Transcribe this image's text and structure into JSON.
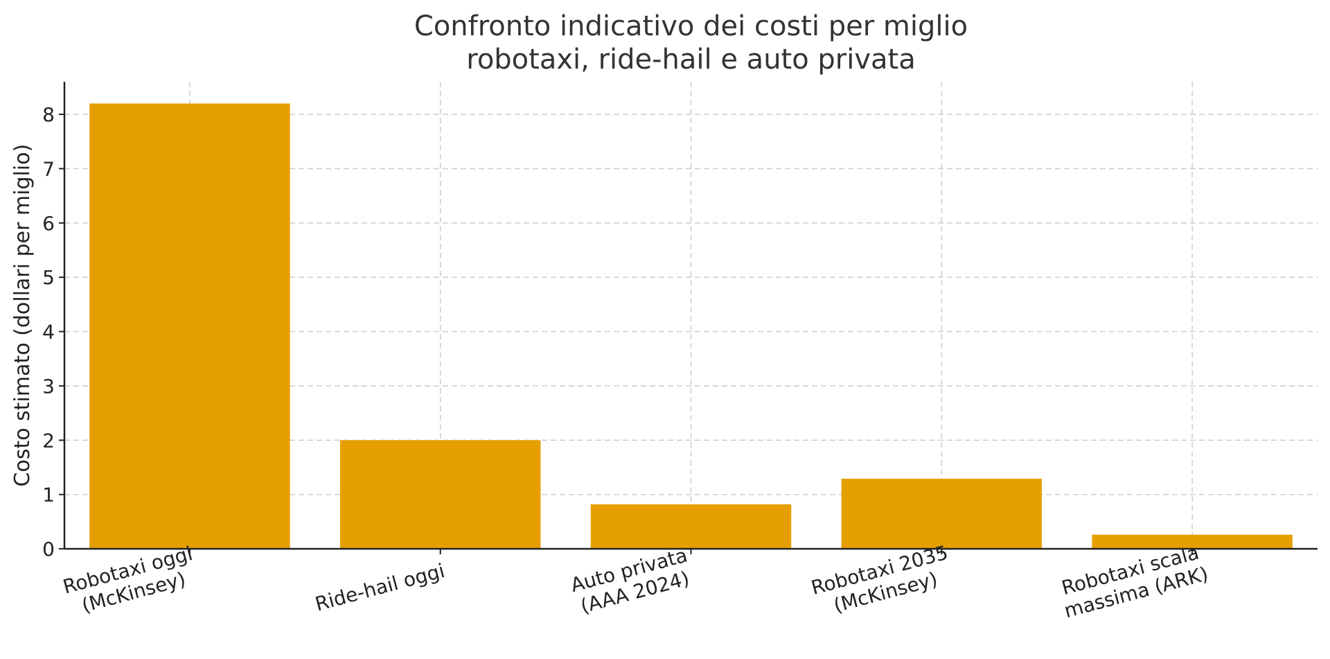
{
  "chart_data": {
    "type": "bar",
    "title": "Confronto indicativo dei costi per miglio\nrobotaxi, ride-hail e auto privata",
    "xlabel": "",
    "ylabel": "Costo stimato (dollari per miglio)",
    "categories": [
      "Robotaxi oggi\n(McKinsey)",
      "Ride-hail oggi",
      "Auto privata\n(AAA 2024)",
      "Robotaxi 2035\n(McKinsey)",
      "Robotaxi scala\nmassima (ARK)"
    ],
    "values": [
      8.2,
      2.0,
      0.82,
      1.29,
      0.26
    ],
    "ylim": [
      0,
      8.6
    ],
    "yticks": [
      0,
      1,
      2,
      3,
      4,
      5,
      6,
      7,
      8
    ],
    "grid": true,
    "bar_color": "#E69F00"
  }
}
